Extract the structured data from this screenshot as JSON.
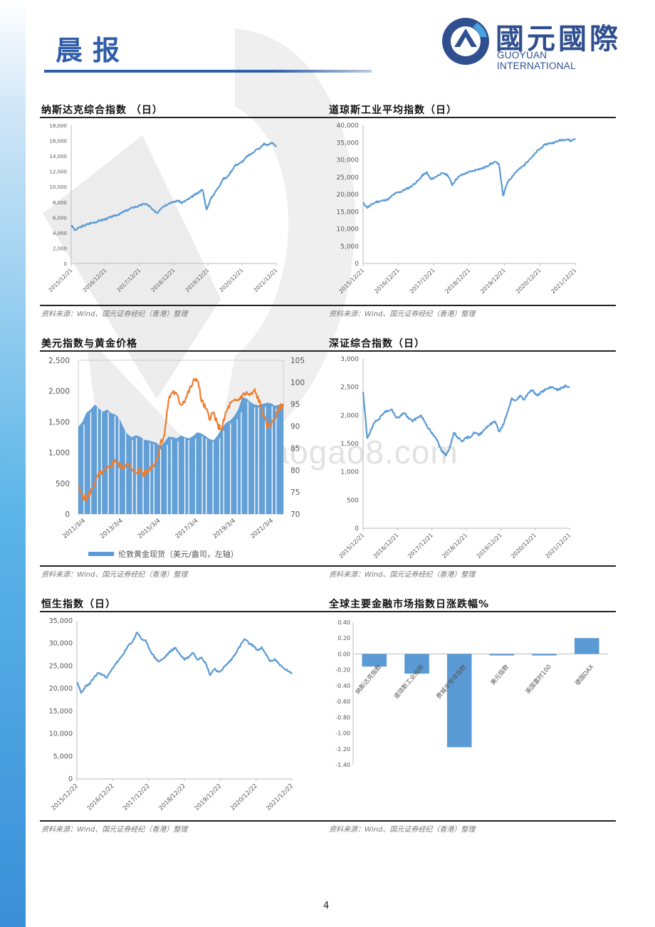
{
  "header": {
    "title": "晨报",
    "logo_cn": "國元國際",
    "logo_en": "GUOYUAN INTERNATIONAL"
  },
  "watermark": "www.baogao8.com",
  "page_number": "4",
  "source_text": "资料来源：Wind、国元证券经纪（香港）整理",
  "colors": {
    "line_blue": "#5b9bd5",
    "gold_orange": "#ed7d31",
    "bar_blue": "#5b9bd5",
    "accent": "#2f5da8"
  },
  "chart_data": [
    {
      "id": "nasdaq",
      "type": "line",
      "title": "纳斯达克综合指数 （日）",
      "xlabel": "",
      "ylabel": "",
      "x_ticks": [
        "2015/12/21",
        "2016/12/21",
        "2017/12/21",
        "2018/12/21",
        "2019/12/21",
        "2020/12/21",
        "2021/12/21"
      ],
      "y_ticks": [
        "0",
        "2,000",
        "4,000",
        "6,000",
        "8,000",
        "10,000",
        "12,000",
        "14,000",
        "16,000",
        "18,000"
      ],
      "ylim": [
        0,
        18000
      ],
      "grid": false,
      "series": [
        {
          "values": [
            5000,
            4300,
            4700,
            4900,
            5100,
            5300,
            5400,
            5600,
            5700,
            5900,
            6100,
            6300,
            6500,
            6800,
            7000,
            7300,
            7400,
            7600,
            7800,
            7500,
            6900,
            6600,
            7300,
            7600,
            7900,
            8000,
            8200,
            7900,
            8200,
            8500,
            8900,
            9200,
            9700,
            7000,
            8400,
            9200,
            10000,
            11000,
            11200,
            12000,
            12800,
            13000,
            13400,
            14000,
            14300,
            14800,
            15000,
            15600,
            15400,
            15800,
            15200
          ]
        }
      ]
    },
    {
      "id": "dow",
      "type": "line",
      "title": "道琼斯工业平均指数（日）",
      "xlabel": "",
      "ylabel": "",
      "x_ticks": [
        "2015/12/21",
        "2016/12/21",
        "2017/12/21",
        "2018/12/21",
        "2019/12/21",
        "2020/12/21",
        "2021/12/21"
      ],
      "y_ticks": [
        "0",
        "5,000",
        "10,000",
        "15,000",
        "20,000",
        "25,000",
        "30,000",
        "35,000",
        "40,000"
      ],
      "ylim": [
        0,
        40000
      ],
      "grid": false,
      "series": [
        {
          "values": [
            17500,
            16200,
            17000,
            17800,
            18000,
            18300,
            18600,
            19800,
            20500,
            20800,
            21500,
            22000,
            23000,
            24000,
            25500,
            26300,
            24300,
            25000,
            25800,
            26100,
            25500,
            22800,
            24500,
            25500,
            26000,
            26500,
            26800,
            27300,
            27500,
            28000,
            28800,
            29300,
            29000,
            19500,
            23500,
            25000,
            26500,
            27500,
            28500,
            30000,
            31000,
            32500,
            33500,
            34500,
            34800,
            35000,
            35500,
            35800,
            36000,
            35500,
            36200
          ]
        }
      ]
    },
    {
      "id": "usd-gold",
      "type": "bar-line",
      "title": "美元指数与黄金价格",
      "xlabel": "",
      "ylabel": "",
      "x_ticks": [
        "2011/3/4",
        "2013/3/4",
        "2015/3/4",
        "2017/3/4",
        "2019/3/4",
        "2021/3/4"
      ],
      "y_ticks_left": [
        "0",
        "500",
        "1,000",
        "1,500",
        "2,000",
        "2,500"
      ],
      "y_ticks_right": [
        "70",
        "75",
        "80",
        "85",
        "90",
        "95",
        "100",
        "105"
      ],
      "ylim_left": [
        0,
        2500
      ],
      "ylim_right": [
        70,
        105
      ],
      "legend": "伦敦黄金现货（美元/盎司，左轴）",
      "legend_position": "bottom",
      "series": [
        {
          "axis": "left",
          "kind": "bar",
          "values": [
            1420,
            1500,
            1650,
            1700,
            1780,
            1720,
            1660,
            1700,
            1640,
            1620,
            1560,
            1410,
            1300,
            1250,
            1280,
            1260,
            1210,
            1200,
            1180,
            1160,
            1100,
            1170,
            1260,
            1250,
            1230,
            1280,
            1250,
            1230,
            1270,
            1330,
            1310,
            1270,
            1220,
            1200,
            1280,
            1400,
            1480,
            1520,
            1590,
            1700,
            1900,
            1880,
            1820,
            1780,
            1770,
            1790,
            1810,
            1800,
            1760,
            1780,
            1790
          ]
        },
        {
          "axis": "right",
          "kind": "line",
          "values": [
            76,
            74,
            73.5,
            75,
            77,
            79,
            79.5,
            80,
            81,
            82.5,
            81,
            80.5,
            82,
            80,
            79.5,
            80,
            79,
            80,
            81,
            82,
            86,
            88,
            96,
            98,
            97,
            95,
            96,
            98,
            100,
            101,
            96,
            94,
            92,
            93,
            90,
            89.5,
            93,
            95,
            95.5,
            96,
            97,
            97.5,
            97,
            98,
            96,
            93,
            90,
            90.5,
            92,
            94,
            95
          ]
        }
      ]
    },
    {
      "id": "szse",
      "type": "line",
      "title": "深证综合指数（日）",
      "xlabel": "",
      "ylabel": "",
      "x_ticks": [
        "2015/12/21",
        "2016/12/21",
        "2017/12/21",
        "2018/12/21",
        "2019/12/21",
        "2020/12/21",
        "2021/12/21"
      ],
      "y_ticks": [
        "0",
        "500",
        "1,000",
        "1,500",
        "2,000",
        "2,500",
        "3,000"
      ],
      "ylim": [
        0,
        3000
      ],
      "grid": false,
      "series": [
        {
          "values": [
            2400,
            1600,
            1750,
            1900,
            1950,
            2050,
            2080,
            2100,
            1950,
            1980,
            2050,
            1950,
            1900,
            1950,
            2000,
            1880,
            1750,
            1650,
            1550,
            1380,
            1300,
            1420,
            1700,
            1600,
            1550,
            1600,
            1620,
            1700,
            1650,
            1720,
            1800,
            1850,
            1900,
            1700,
            1850,
            2050,
            2300,
            2250,
            2350,
            2280,
            2400,
            2450,
            2350,
            2400,
            2450,
            2480,
            2500,
            2450,
            2480,
            2520,
            2490
          ]
        }
      ]
    },
    {
      "id": "hsi",
      "type": "line",
      "title": "恒生指数（日）",
      "xlabel": "",
      "ylabel": "",
      "x_ticks": [
        "2015/12/22",
        "2016/12/22",
        "2017/12/22",
        "2018/12/22",
        "2019/12/22",
        "2020/12/22",
        "2021/12/22"
      ],
      "y_ticks": [
        "0",
        "5,000",
        "10,000",
        "15,000",
        "20,000",
        "25,000",
        "30,000",
        "35,000"
      ],
      "ylim": [
        0,
        35000
      ],
      "grid": false,
      "series": [
        {
          "values": [
            21500,
            19000,
            20500,
            21000,
            22500,
            23500,
            23000,
            22500,
            24000,
            25500,
            26500,
            28000,
            29500,
            30500,
            32500,
            31000,
            30500,
            28500,
            27000,
            26000,
            26500,
            27500,
            28500,
            29000,
            27500,
            26500,
            27000,
            28000,
            26500,
            27000,
            25500,
            23000,
            24500,
            23500,
            24500,
            25500,
            26500,
            28000,
            29500,
            31000,
            30000,
            29500,
            28500,
            29000,
            27500,
            26000,
            26500,
            25500,
            24500,
            24000,
            23200
          ]
        }
      ]
    },
    {
      "id": "global-markets",
      "type": "bar",
      "title": "全球主要金融市场指数日涨跌幅%",
      "categories": [
        "纳斯达克指数",
        "道琼斯工业指数",
        "费城半导体指数",
        "美元指数",
        "英国富时100",
        "德国DAX"
      ],
      "values": [
        -0.16,
        -0.25,
        -1.18,
        -0.02,
        -0.02,
        0.2
      ],
      "y_ticks": [
        "0.40",
        "0.20",
        "0.00",
        "-0.20",
        "-0.40",
        "-0.60",
        "-0.80",
        "-1.00",
        "-1.20",
        "-1.40"
      ],
      "ylim": [
        -1.4,
        0.4
      ],
      "grid": false
    }
  ]
}
